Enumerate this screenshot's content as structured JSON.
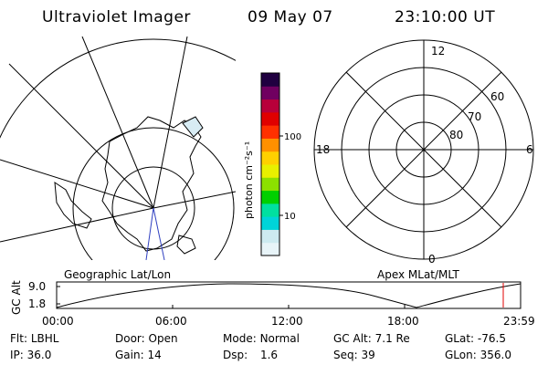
{
  "header": {
    "title": "Ultraviolet Imager",
    "date": "09 May 07",
    "time": "23:10:00 UT"
  },
  "colorbar": {
    "unit_label": "photon cm⁻²s⁻¹",
    "ticks": [
      "100",
      "10"
    ],
    "scale": "log",
    "colors": [
      "#e8f4f8",
      "#cdeaf0",
      "#00d4d8",
      "#00e0a0",
      "#00d000",
      "#8ce000",
      "#e8f000",
      "#ffd000",
      "#ff9000",
      "#ff3000",
      "#e00000",
      "#b8003a",
      "#700060",
      "#200040"
    ]
  },
  "left_panel": {
    "label": "Geographic Lat/Lon",
    "projection": "polar-south",
    "accent_color": "#3040c0"
  },
  "right_panel": {
    "label": "Apex MLat/MLT",
    "mlt_labels": {
      "top": "12",
      "right": "6",
      "bottom": "0",
      "left": "18"
    },
    "lat_labels": [
      "60",
      "70",
      "80"
    ]
  },
  "timeline": {
    "y_axis_label": "GC Alt",
    "y_ticks": [
      "9.0",
      "1.8"
    ],
    "x_ticks": [
      "00:00",
      "06:00",
      "12:00",
      "18:00",
      "23:59"
    ],
    "marker_time": "23:10",
    "marker_color": "#e00000"
  },
  "status": {
    "row1": [
      {
        "label": "Flt:",
        "value": "LBHL"
      },
      {
        "label": "Door:",
        "value": "Open"
      },
      {
        "label": "Mode:",
        "value": "Normal"
      },
      {
        "label": "GC Alt:",
        "value": "7.1 Re"
      },
      {
        "label": "GLat:",
        "value": "-76.5"
      }
    ],
    "row2": [
      {
        "label": "IP:",
        "value": "36.0"
      },
      {
        "label": "Gain:",
        "value": "14"
      },
      {
        "label": "Dsp:",
        "value": "1.6"
      },
      {
        "label": "Seq:",
        "value": "39"
      },
      {
        "label": "GLon:",
        "value": "356.0"
      }
    ]
  }
}
